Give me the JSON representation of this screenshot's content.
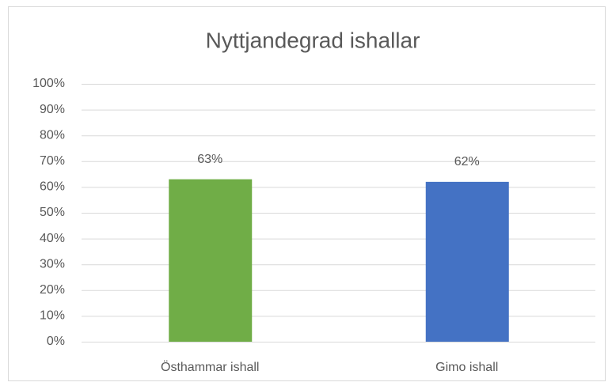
{
  "chart_data": {
    "type": "bar",
    "title": "Nyttjandegrad ishallar",
    "categories": [
      "Östhammar ishall",
      "Gimo ishall"
    ],
    "values": [
      63,
      62
    ],
    "value_labels": [
      "63%",
      "62%"
    ],
    "colors": [
      "#70ad47",
      "#4472c4"
    ],
    "ylim": [
      0,
      100
    ],
    "yticks": [
      {
        "value": 0,
        "label": "0%"
      },
      {
        "value": 10,
        "label": "10%"
      },
      {
        "value": 20,
        "label": "20%"
      },
      {
        "value": 30,
        "label": "30%"
      },
      {
        "value": 40,
        "label": "40%"
      },
      {
        "value": 50,
        "label": "50%"
      },
      {
        "value": 60,
        "label": "60%"
      },
      {
        "value": 70,
        "label": "70%"
      },
      {
        "value": 80,
        "label": "80%"
      },
      {
        "value": 90,
        "label": "90%"
      },
      {
        "value": 100,
        "label": "100%"
      }
    ],
    "grid": true
  }
}
